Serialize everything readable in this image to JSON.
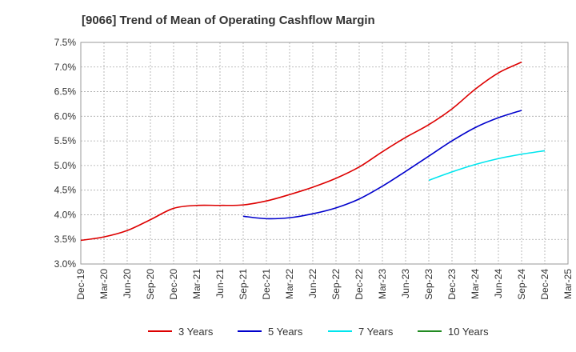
{
  "chart_data": {
    "type": "line",
    "title": "[9066]  Trend of Mean of Operating Cashflow Margin",
    "xlabel": "",
    "ylabel": "",
    "ylim": [
      3.0,
      7.5
    ],
    "y_ticks": [
      3.0,
      3.5,
      4.0,
      4.5,
      5.0,
      5.5,
      6.0,
      6.5,
      7.0,
      7.5
    ],
    "y_tick_labels": [
      "3.0%",
      "3.5%",
      "4.0%",
      "4.5%",
      "5.0%",
      "5.5%",
      "6.0%",
      "6.5%",
      "7.0%",
      "7.5%"
    ],
    "x_tick_labels": [
      "Dec-19",
      "Mar-20",
      "Jun-20",
      "Sep-20",
      "Dec-20",
      "Mar-21",
      "Jun-21",
      "Sep-21",
      "Dec-21",
      "Mar-22",
      "Jun-22",
      "Sep-22",
      "Dec-22",
      "Mar-23",
      "Jun-23",
      "Sep-23",
      "Dec-23",
      "Mar-24",
      "Jun-24",
      "Sep-24",
      "Dec-24",
      "Mar-25"
    ],
    "grid": true,
    "legend_position": "bottom",
    "series": [
      {
        "name": "3 Years",
        "color": "#dd0000",
        "start_index": 0,
        "values": [
          3.48,
          3.55,
          3.68,
          3.9,
          4.13,
          4.19,
          4.19,
          4.2,
          4.28,
          4.41,
          4.56,
          4.74,
          4.97,
          5.28,
          5.57,
          5.83,
          6.15,
          6.55,
          6.88,
          7.1
        ]
      },
      {
        "name": "5 Years",
        "color": "#0000cc",
        "start_index": 7,
        "values": [
          3.97,
          3.92,
          3.94,
          4.02,
          4.14,
          4.32,
          4.58,
          4.88,
          5.19,
          5.5,
          5.77,
          5.97,
          6.12
        ]
      },
      {
        "name": "7 Years",
        "color": "#00e5ee",
        "start_index": 15,
        "values": [
          4.7,
          4.87,
          5.02,
          5.14,
          5.23,
          5.3
        ]
      },
      {
        "name": "10 Years",
        "color": "#228b22",
        "start_index": 0,
        "values": []
      }
    ]
  }
}
